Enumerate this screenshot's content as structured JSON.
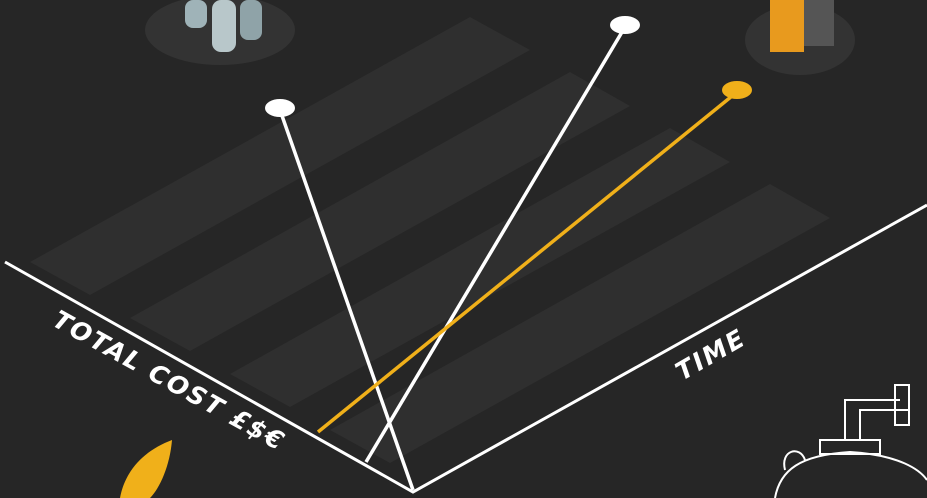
{
  "x_axis_label": "TIME",
  "y_axis_label": "TOTAL COST £$€"
}
